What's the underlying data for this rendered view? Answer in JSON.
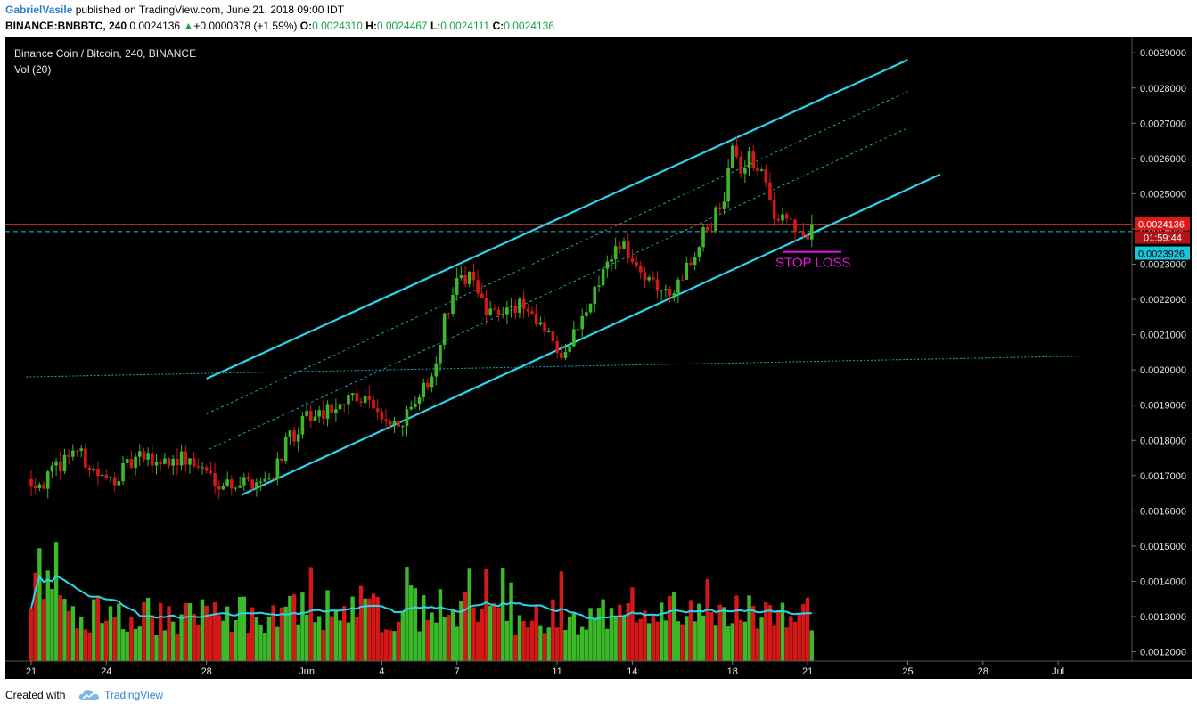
{
  "header": {
    "author": "GabrielVasile",
    "published_text": " published on TradingView.com, June 21, 2018 09:00 IDT",
    "symbol": "BINANCE:BNBBTC, 240",
    "last": "0.0024136",
    "change": "+0.0000378 (+1.59%)",
    "o_label": "O:",
    "o_val": "0.0024310",
    "h_label": "H:",
    "h_val": "0.0024467",
    "l_label": "L:",
    "l_val": "0.0024111",
    "c_label": "C:",
    "c_val": "0.0024136"
  },
  "chart_title": "Binance Coin / Bitcoin, 240, BINANCE",
  "volume_label": "Vol (20)",
  "annotation": "STOP LOSS",
  "price_tags": {
    "last_price": "0.0024136",
    "countdown": "01:59:44",
    "hline_price": "0.0023926"
  },
  "footer": {
    "created_with": "Created with",
    "brand": "TradingView"
  },
  "colors": {
    "up": "#3cb82b",
    "down": "#d41818",
    "channel": "#2ad6ec",
    "stop_loss": "#e01ce0",
    "last_tag": "#e01818",
    "hline_tag": "#19c7da"
  },
  "chart_data": {
    "type": "candlestick",
    "interval": "240",
    "y_ticks": [
      "0.0029000",
      "0.0028000",
      "0.0027000",
      "0.0026000",
      "0.0025000",
      "0.0024000",
      "0.0023000",
      "0.0022000",
      "0.0021000",
      "0.0020000",
      "0.0019000",
      "0.0018000",
      "0.0017000",
      "0.0016000",
      "0.0015000",
      "0.0014000",
      "0.0013000",
      "0.0012000"
    ],
    "x_ticks": [
      {
        "label": "21",
        "day": 0
      },
      {
        "label": "24",
        "day": 3
      },
      {
        "label": "28",
        "day": 7
      },
      {
        "label": "Jun",
        "day": 11
      },
      {
        "label": "4",
        "day": 14
      },
      {
        "label": "7",
        "day": 17
      },
      {
        "label": "11",
        "day": 21
      },
      {
        "label": "14",
        "day": 24
      },
      {
        "label": "18",
        "day": 28
      },
      {
        "label": "21",
        "day": 31
      },
      {
        "label": "25",
        "day": 35
      },
      {
        "label": "28",
        "day": 38
      },
      {
        "label": "Jul",
        "day": 41
      }
    ],
    "last_bar_day": 31.15,
    "price_path": [
      [
        0,
        0.00169
      ],
      [
        0.5,
        0.00168
      ],
      [
        1,
        0.00172
      ],
      [
        1.7,
        0.00178
      ],
      [
        2.3,
        0.00173
      ],
      [
        3,
        0.00168
      ],
      [
        3.6,
        0.00171
      ],
      [
        4.3,
        0.00175
      ],
      [
        5,
        0.00174
      ],
      [
        6,
        0.00175
      ],
      [
        6.8,
        0.00172
      ],
      [
        7.6,
        0.00168
      ],
      [
        8.4,
        0.00168
      ],
      [
        9.5,
        0.00169
      ],
      [
        10.2,
        0.00179
      ],
      [
        11,
        0.00187
      ],
      [
        12,
        0.00189
      ],
      [
        12.8,
        0.00193
      ],
      [
        13.5,
        0.00191
      ],
      [
        14.2,
        0.00186
      ],
      [
        14.7,
        0.00183
      ],
      [
        15.3,
        0.0019
      ],
      [
        16,
        0.00198
      ],
      [
        16.5,
        0.00214
      ],
      [
        17,
        0.00224
      ],
      [
        17.5,
        0.00227
      ],
      [
        18.2,
        0.00215
      ],
      [
        18.7,
        0.00217
      ],
      [
        19.3,
        0.00218
      ],
      [
        20,
        0.00217
      ],
      [
        20.6,
        0.0021
      ],
      [
        21.2,
        0.00205
      ],
      [
        21.8,
        0.00212
      ],
      [
        22.5,
        0.00222
      ],
      [
        23,
        0.00233
      ],
      [
        23.6,
        0.00236
      ],
      [
        24,
        0.00229
      ],
      [
        24.5,
        0.00225
      ],
      [
        25.3,
        0.00221
      ],
      [
        25.8,
        0.00225
      ],
      [
        26.4,
        0.00233
      ],
      [
        27,
        0.0024
      ],
      [
        27.6,
        0.00247
      ],
      [
        28,
        0.00262
      ],
      [
        28.4,
        0.00257
      ],
      [
        28.7,
        0.0026
      ],
      [
        29.2,
        0.00255
      ],
      [
        29.6,
        0.00245
      ],
      [
        30.1,
        0.00243
      ],
      [
        30.6,
        0.0024
      ],
      [
        30.9,
        0.00236
      ],
      [
        31.15,
        0.00241
      ]
    ],
    "channel": {
      "upper": {
        "from": [
          7.0,
          0.001975
        ],
        "to": [
          35.0,
          0.00288
        ]
      },
      "lower": {
        "from": [
          8.4,
          0.001645
        ],
        "to": [
          36.3,
          0.002555
        ]
      },
      "mid_1": {
        "from": [
          7.0,
          0.001875
        ],
        "to": [
          35.0,
          0.00279
        ]
      },
      "mid_2": {
        "from": [
          7.1,
          0.001775
        ],
        "to": [
          35.1,
          0.00269
        ]
      }
    },
    "horizontal_line": 0.0023926,
    "trend_line_dotted": {
      "from": [
        -0.2,
        0.00198
      ],
      "to": [
        42.5,
        0.00204
      ]
    },
    "stop_loss_level": 0.002335,
    "volume": {
      "label": "Vol (20)",
      "ma_period": 20
    },
    "ylim": [
      0.00118,
      0.002955
    ],
    "xlim": [
      -0.35,
      43.2
    ]
  }
}
